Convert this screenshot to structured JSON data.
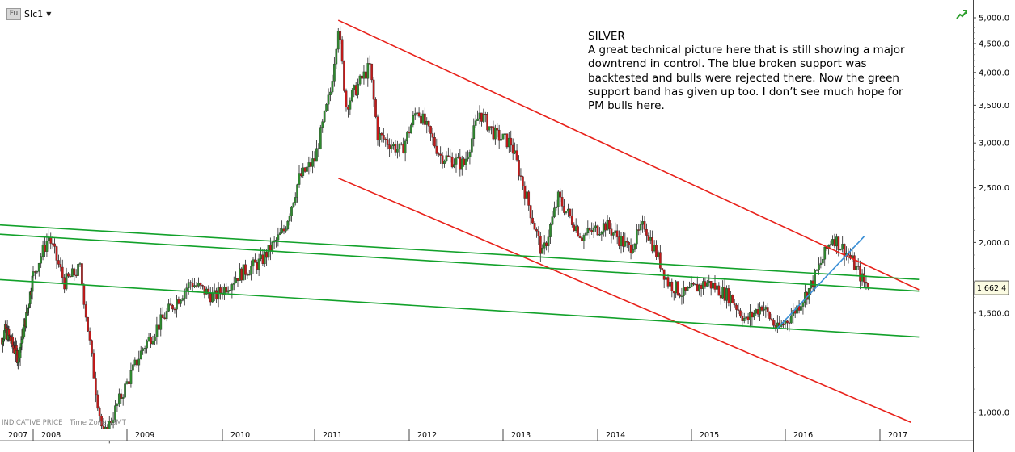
{
  "toolbar": {
    "badge": "Fu",
    "symbol": "SIc1"
  },
  "annotation": {
    "title": "SILVER",
    "body": "A great technical picture here that is still showing a major downtrend in control. The blue broken support was backtested and bulls were rejected there. Now the green support band has given up too. I don’t see much hope for PM bulls here."
  },
  "footer": {
    "indicative": "INDICATIVE PRICE",
    "timezone": "Time Zone: GMT"
  },
  "colors": {
    "up": "#2f8a2f",
    "down": "#c21a1a",
    "wick": "#222222",
    "trend_red": "#e8211a",
    "support_green": "#12a12a",
    "support_blue": "#3a8fd6",
    "price_badge_bg": "#fbfbe2"
  },
  "icons": {
    "chart_toggle": "trend-arrow-icon",
    "caret": "caret-down-icon"
  },
  "chart_data": {
    "type": "candlestick",
    "symbol": "SIc1",
    "x_range": [
      "2007-01",
      "2017-06"
    ],
    "y_scale": "log",
    "ylim": [
      900,
      5300
    ],
    "yticks": [
      1000,
      1500,
      2000,
      2500,
      3000,
      3500,
      4000,
      4500,
      5000
    ],
    "ytick_labels": [
      "1,000.0",
      "1,500.0",
      "2,000.0",
      "2,500.0",
      "3,000.0",
      "3,500.0",
      "4,000.0",
      "4,500.0",
      "5,000.0"
    ],
    "xtick_labels": [
      "2007",
      "2008",
      "2009",
      "2010",
      "2011",
      "2012",
      "2013",
      "2014",
      "2015",
      "2016",
      "2017"
    ],
    "last_price": 1662.4,
    "last_price_label": "1,662.4",
    "price_path": [
      [
        "2007-01",
        1300
      ],
      [
        "2007-04",
        1400
      ],
      [
        "2007-08",
        1250
      ],
      [
        "2007-11",
        1500
      ],
      [
        "2008-03",
        2050
      ],
      [
        "2008-05",
        1700
      ],
      [
        "2008-07",
        1800
      ],
      [
        "2008-09",
        1100
      ],
      [
        "2008-10",
        900
      ],
      [
        "2008-12",
        1050
      ],
      [
        "2009-03",
        1300
      ],
      [
        "2009-06",
        1500
      ],
      [
        "2009-09",
        1700
      ],
      [
        "2009-12",
        1600
      ],
      [
        "2010-03",
        1750
      ],
      [
        "2010-06",
        1850
      ],
      [
        "2010-09",
        2100
      ],
      [
        "2010-11",
        2600
      ],
      [
        "2011-01",
        2800
      ],
      [
        "2011-03",
        3700
      ],
      [
        "2011-04",
        4850
      ],
      [
        "2011-05",
        3500
      ],
      [
        "2011-07",
        3900
      ],
      [
        "2011-08",
        4100
      ],
      [
        "2011-09",
        3100
      ],
      [
        "2011-12",
        2900
      ],
      [
        "2012-02",
        3450
      ],
      [
        "2012-05",
        2850
      ],
      [
        "2012-08",
        2750
      ],
      [
        "2012-10",
        3400
      ],
      [
        "2012-12",
        3100
      ],
      [
        "2013-02",
        3000
      ],
      [
        "2013-04",
        2400
      ],
      [
        "2013-06",
        1900
      ],
      [
        "2013-08",
        2400
      ],
      [
        "2013-11",
        2050
      ],
      [
        "2014-02",
        2150
      ],
      [
        "2014-05",
        1950
      ],
      [
        "2014-07",
        2150
      ],
      [
        "2014-10",
        1700
      ],
      [
        "2014-12",
        1620
      ],
      [
        "2015-03",
        1700
      ],
      [
        "2015-06",
        1600
      ],
      [
        "2015-08",
        1450
      ],
      [
        "2015-10",
        1550
      ],
      [
        "2015-12",
        1400
      ],
      [
        "2016-02",
        1500
      ],
      [
        "2016-04",
        1650
      ],
      [
        "2016-07",
        2050
      ],
      [
        "2016-09",
        1900
      ],
      [
        "2016-11",
        1700
      ],
      [
        "2016-12",
        1662.4
      ]
    ],
    "trendlines": [
      {
        "color": "red",
        "style": "solid",
        "points": [
          [
            "2011-04",
            4950
          ],
          [
            "2017-06",
            1650
          ]
        ]
      },
      {
        "color": "red",
        "style": "solid",
        "points": [
          [
            "2011-04",
            2600
          ],
          [
            "2017-05",
            960
          ]
        ]
      },
      {
        "color": "green",
        "style": "solid",
        "points": [
          [
            "2007-01",
            2150
          ],
          [
            "2017-06",
            1720
          ]
        ]
      },
      {
        "color": "green",
        "style": "solid",
        "points": [
          [
            "2007-01",
            2070
          ],
          [
            "2017-06",
            1640
          ]
        ]
      },
      {
        "color": "green",
        "style": "solid",
        "points": [
          [
            "2007-01",
            1720
          ],
          [
            "2017-06",
            1360
          ]
        ]
      },
      {
        "color": "blue",
        "style": "solid",
        "points": [
          [
            "2015-12",
            1410
          ],
          [
            "2016-11",
            2050
          ]
        ]
      }
    ]
  }
}
